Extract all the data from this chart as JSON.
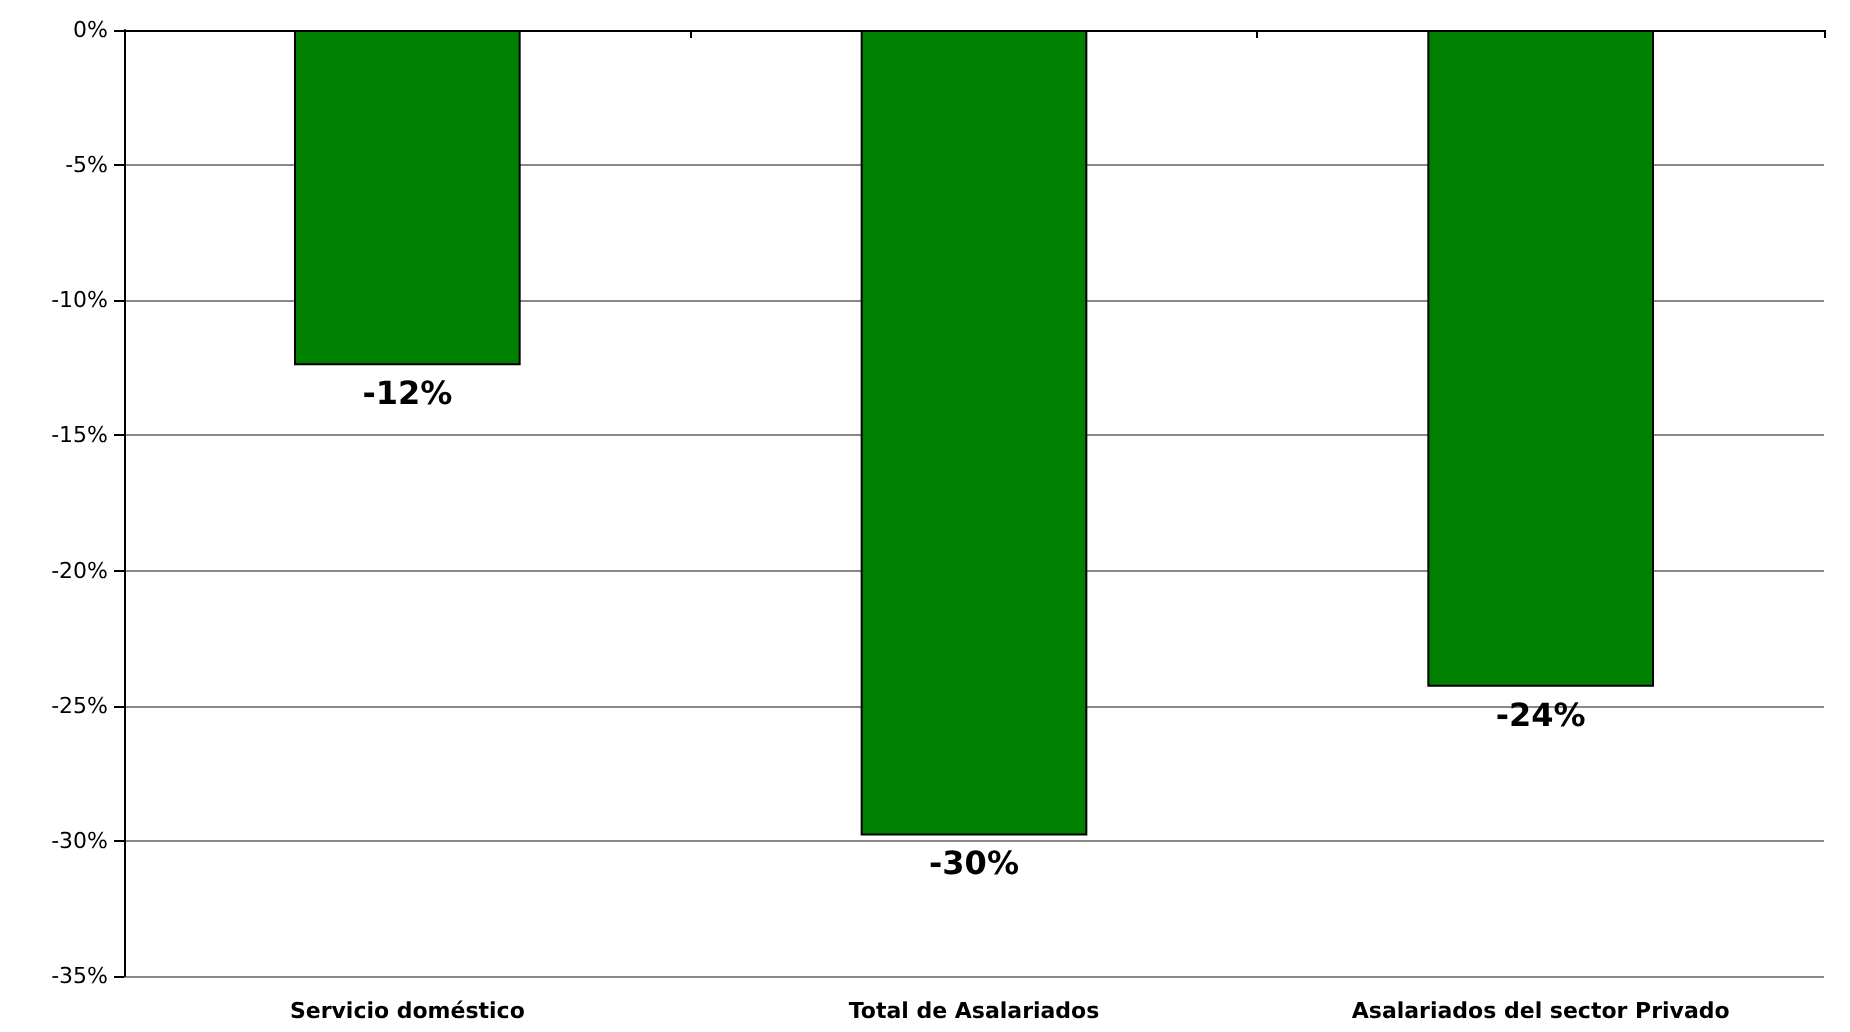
{
  "chart_data": {
    "type": "bar",
    "categories": [
      "Servicio doméstico",
      "Total de Asalariados",
      "Asalariados del sector Privado"
    ],
    "values": [
      -12.4,
      -29.8,
      -24.3
    ],
    "color": "#008000",
    "value_labels": [
      "-12%",
      "-30%",
      "-24%"
    ],
    "ylim": [
      -35,
      0
    ],
    "yticks": [
      {
        "value": 0,
        "label": "0%"
      },
      {
        "value": -5,
        "label": "-5%"
      },
      {
        "value": -10,
        "label": "-10%"
      },
      {
        "value": -15,
        "label": "-15%"
      },
      {
        "value": -20,
        "label": "-20%"
      },
      {
        "value": -25,
        "label": "-25%"
      },
      {
        "value": -30,
        "label": "-30%"
      },
      {
        "value": -35,
        "label": "-35%"
      }
    ],
    "grid": "y"
  }
}
